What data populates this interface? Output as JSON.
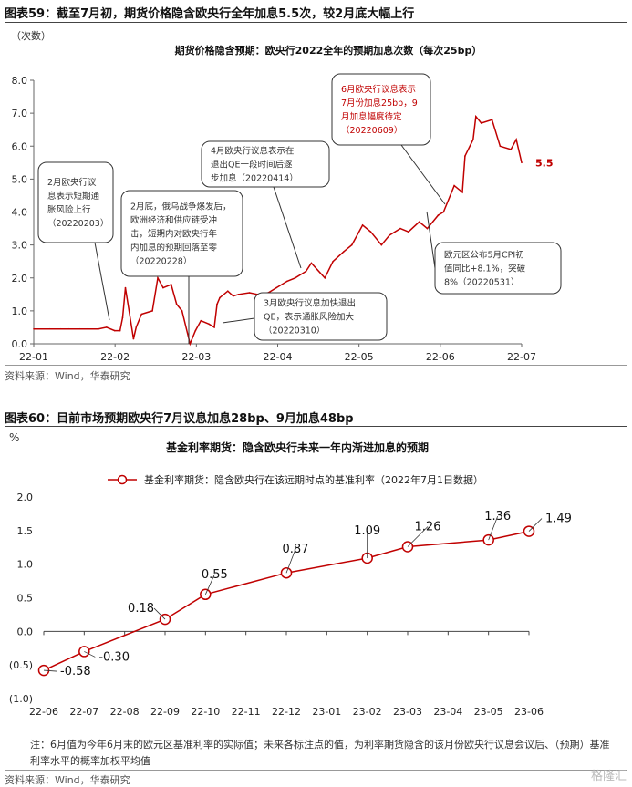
{
  "fig1": {
    "title": "图表59：截至7月初，期货价格隐含欧央行全年加息5.5次，较2月底大幅上行",
    "unit": "（次数）",
    "chart_title": "期货价格隐含预期：欧央行2022全年的预期加息次数（每次25bp）",
    "source": "资料来源：Wind，华泰研究",
    "end_label": "5.5",
    "annotations": [
      {
        "id": "a0203",
        "lines": [
          "2月欧央行议",
          "息表示短期通",
          "胀风险上行",
          "（20220203）"
        ]
      },
      {
        "id": "a0228",
        "lines": [
          "2月底，俄乌战争爆发后，",
          "欧洲经济和供应链受冲",
          "击，短期内对欧央行年",
          "内加息的预期回落至零",
          "（20220228）"
        ]
      },
      {
        "id": "a0310",
        "lines": [
          "3月欧央行议息加快退出",
          "QE，表示通胀风险加大",
          "（20220310）"
        ]
      },
      {
        "id": "a0414",
        "lines": [
          "4月欧央行议息表示在",
          "退出QE一段时间后逐",
          "步加息（20220414）"
        ]
      },
      {
        "id": "a0531",
        "lines": [
          "欧元区公布5月CPI初",
          "值同比+8.1%，突破",
          "8%（20220531）"
        ]
      },
      {
        "id": "a0609",
        "lines": [
          "6月欧央行议息表示",
          "7月份加息25bp，9",
          "月加息幅度待定",
          "（20220609）"
        ]
      }
    ],
    "chart_data": {
      "type": "line",
      "title": "期货价格隐含预期：欧央行2022全年的预期加息次数（每次25bp）",
      "ylabel": "（次数）",
      "ylim": [
        0,
        8
      ],
      "yticks": [
        "0.0",
        "1.0",
        "2.0",
        "3.0",
        "4.0",
        "5.0",
        "6.0",
        "7.0",
        "8.0"
      ],
      "xticks": [
        "22-01",
        "22-02",
        "22-03",
        "22-04",
        "22-05",
        "22-06",
        "22-07"
      ],
      "color": "#c00000",
      "x": [
        "2022-01-01",
        "2022-01-07",
        "2022-01-11",
        "2022-01-14",
        "2022-01-18",
        "2022-01-21",
        "2022-01-25",
        "2022-01-28",
        "2022-01-31",
        "2022-02-02",
        "2022-02-03",
        "2022-02-04",
        "2022-02-07",
        "2022-02-08",
        "2022-02-10",
        "2022-02-14",
        "2022-02-16",
        "2022-02-18",
        "2022-02-21",
        "2022-02-23",
        "2022-02-25",
        "2022-02-28",
        "2022-03-02",
        "2022-03-04",
        "2022-03-07",
        "2022-03-09",
        "2022-03-10",
        "2022-03-11",
        "2022-03-14",
        "2022-03-16",
        "2022-03-18",
        "2022-03-22",
        "2022-03-25",
        "2022-03-29",
        "2022-04-01",
        "2022-04-05",
        "2022-04-08",
        "2022-04-12",
        "2022-04-14",
        "2022-04-19",
        "2022-04-22",
        "2022-04-26",
        "2022-04-29",
        "2022-05-03",
        "2022-05-06",
        "2022-05-10",
        "2022-05-13",
        "2022-05-17",
        "2022-05-20",
        "2022-05-24",
        "2022-05-27",
        "2022-05-31",
        "2022-06-02",
        "2022-06-06",
        "2022-06-09",
        "2022-06-10",
        "2022-06-13",
        "2022-06-14",
        "2022-06-16",
        "2022-06-20",
        "2022-06-23",
        "2022-06-27",
        "2022-06-29",
        "2022-07-01"
      ],
      "values": [
        0.45,
        0.45,
        0.45,
        0.45,
        0.45,
        0.45,
        0.45,
        0.5,
        0.4,
        0.4,
        0.8,
        1.7,
        0.15,
        0.5,
        0.9,
        1.0,
        2.0,
        1.7,
        1.8,
        1.2,
        1.0,
        0.0,
        0.4,
        0.7,
        0.6,
        0.5,
        1.2,
        1.4,
        1.6,
        1.45,
        1.5,
        1.55,
        1.5,
        1.55,
        1.7,
        1.9,
        2.0,
        2.2,
        2.45,
        2.0,
        2.5,
        2.8,
        3.0,
        3.6,
        3.4,
        3.0,
        3.3,
        3.5,
        3.4,
        3.7,
        3.5,
        3.9,
        4.0,
        4.8,
        4.6,
        5.7,
        6.2,
        6.9,
        6.7,
        6.8,
        6.0,
        5.9,
        6.2,
        5.5
      ]
    }
  },
  "fig2": {
    "title": "图表60：目前市场预期欧央行7月议息加息28bp、9月加息48bp",
    "unit": "%",
    "chart_title": "基金利率期货：隐含欧央行未来一年内渐进加息的预期",
    "note": "注：6月值为今年6月末的欧元区基准利率的实际值；未来各标注点的值，为利率期货隐含的该月份欧央行议息会议后、（预期）基准利率水平的概率加权平均值",
    "source": "资料来源：Wind，华泰研究",
    "watermark": "格隆汇",
    "chart_data": {
      "type": "line",
      "title": "基金利率期货：隐含欧央行未来一年内渐进加息的预期",
      "ylabel": "%",
      "ylim": [
        -1.0,
        2.0
      ],
      "yticks": [
        "(1.0)",
        "(0.5)",
        "0.0",
        "0.5",
        "1.0",
        "1.5",
        "2.0"
      ],
      "categories": [
        "22-06",
        "22-07",
        "22-08",
        "22-09",
        "22-10",
        "22-11",
        "22-12",
        "23-01",
        "23-02",
        "23-03",
        "23-04",
        "23-05",
        "23-06"
      ],
      "series": [
        {
          "name": "基金利率期货：隐含欧央行在该远期时点的基准利率（2022年7月1日数据）",
          "color": "#c00000",
          "points": [
            {
              "x": "22-06",
              "y": -0.58,
              "label": "-0.58"
            },
            {
              "x": "22-07",
              "y": -0.3,
              "label": "-0.30"
            },
            {
              "x": "22-09",
              "y": 0.18,
              "label": "0.18"
            },
            {
              "x": "22-10",
              "y": 0.55,
              "label": "0.55"
            },
            {
              "x": "22-12",
              "y": 0.87,
              "label": "0.87"
            },
            {
              "x": "23-02",
              "y": 1.09,
              "label": "1.09"
            },
            {
              "x": "23-03",
              "y": 1.26,
              "label": "1.26"
            },
            {
              "x": "23-05",
              "y": 1.36,
              "label": "1.36"
            },
            {
              "x": "23-06",
              "y": 1.49,
              "label": "1.49"
            }
          ]
        }
      ]
    }
  }
}
